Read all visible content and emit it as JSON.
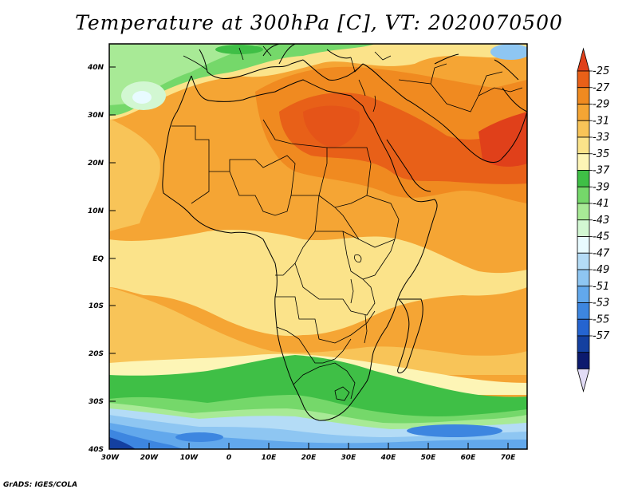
{
  "title": "Temperature at 300hPa [C], VT: 2020070500",
  "credit": "GrADS: IGES/COLA",
  "map": {
    "lat_labels": [
      "40N",
      "30N",
      "20N",
      "10N",
      "EQ",
      "10S",
      "20S",
      "30S",
      "40S"
    ],
    "lon_labels": [
      "30W",
      "20W",
      "10W",
      "0",
      "10E",
      "20E",
      "30E",
      "40E",
      "50E",
      "60E",
      "70E"
    ]
  },
  "colorbar": {
    "labels": [
      "-25",
      "-27",
      "-29",
      "-31",
      "-33",
      "-35",
      "-37",
      "-39",
      "-41",
      "-43",
      "-45",
      "-47",
      "-49",
      "-51",
      "-53",
      "-55",
      "-57"
    ],
    "colors": {
      "top_tip": "#e0401a",
      "bands": [
        "#e86018",
        "#f08a20",
        "#f5a534",
        "#f8c458",
        "#fbe38a",
        "#fdf5b6",
        "#3fbf46",
        "#75d86a",
        "#a8ea96",
        "#d2f7d2",
        "#e8fbff",
        "#b4dcf6",
        "#8ec6f2",
        "#62a8ec",
        "#3d86e0",
        "#2564d0",
        "#1440a0",
        "#0c1a6e"
      ],
      "bottom_tip": "#e2dcf6"
    }
  }
}
